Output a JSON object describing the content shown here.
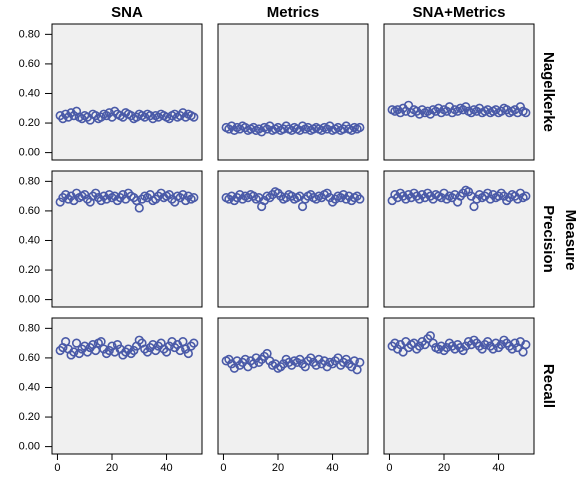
{
  "chart_data": {
    "type": "scatter",
    "columns": [
      "SNA",
      "Metrics",
      "SNA+Metrics"
    ],
    "rows": [
      "Nagelkerke",
      "Precision",
      "Recall"
    ],
    "row_axis_label": "Measure",
    "color": "#4a5aa8",
    "panel_background": "#f0f0f0",
    "xlim": [
      -2,
      53
    ],
    "ylim": [
      -0.05,
      0.87
    ],
    "xticks": [
      0,
      20,
      40
    ],
    "yticks": [
      {
        "value": 0,
        "label": "0.00"
      },
      {
        "value": 0.2,
        "label": "0.20"
      },
      {
        "value": 0.4,
        "label": "0.40"
      },
      {
        "value": 0.6,
        "label": "0.60"
      },
      {
        "value": 0.8,
        "label": "0.80"
      }
    ],
    "x": [
      1,
      2,
      3,
      4,
      5,
      6,
      7,
      8,
      9,
      10,
      11,
      12,
      13,
      14,
      15,
      16,
      17,
      18,
      19,
      20,
      21,
      22,
      23,
      24,
      25,
      26,
      27,
      28,
      29,
      30,
      31,
      32,
      33,
      34,
      35,
      36,
      37,
      38,
      39,
      40,
      41,
      42,
      43,
      44,
      45,
      46,
      47,
      48,
      49,
      50
    ],
    "panels": [
      [
        [
          0.25,
          0.23,
          0.26,
          0.24,
          0.27,
          0.25,
          0.28,
          0.24,
          0.23,
          0.25,
          0.24,
          0.22,
          0.26,
          0.25,
          0.23,
          0.24,
          0.26,
          0.25,
          0.27,
          0.24,
          0.28,
          0.26,
          0.25,
          0.24,
          0.27,
          0.26,
          0.25,
          0.23,
          0.24,
          0.26,
          0.25,
          0.24,
          0.26,
          0.25,
          0.23,
          0.25,
          0.24,
          0.26,
          0.25,
          0.24,
          0.23,
          0.25,
          0.26,
          0.24,
          0.25,
          0.27,
          0.24,
          0.26,
          0.25,
          0.24
        ],
        [
          0.17,
          0.16,
          0.18,
          0.15,
          0.17,
          0.16,
          0.18,
          0.17,
          0.15,
          0.16,
          0.17,
          0.15,
          0.16,
          0.14,
          0.17,
          0.16,
          0.18,
          0.15,
          0.16,
          0.17,
          0.15,
          0.16,
          0.18,
          0.16,
          0.15,
          0.17,
          0.16,
          0.15,
          0.18,
          0.16,
          0.17,
          0.15,
          0.16,
          0.17,
          0.16,
          0.15,
          0.17,
          0.16,
          0.18,
          0.15,
          0.16,
          0.17,
          0.15,
          0.16,
          0.18,
          0.16,
          0.15,
          0.17,
          0.16,
          0.17
        ],
        [
          0.29,
          0.28,
          0.29,
          0.27,
          0.3,
          0.28,
          0.32,
          0.27,
          0.29,
          0.28,
          0.26,
          0.29,
          0.27,
          0.28,
          0.26,
          0.29,
          0.28,
          0.3,
          0.27,
          0.29,
          0.28,
          0.31,
          0.27,
          0.29,
          0.28,
          0.3,
          0.29,
          0.31,
          0.28,
          0.27,
          0.29,
          0.28,
          0.3,
          0.27,
          0.28,
          0.29,
          0.27,
          0.28,
          0.29,
          0.27,
          0.28,
          0.3,
          0.29,
          0.27,
          0.28,
          0.29,
          0.27,
          0.31,
          0.28,
          0.27
        ]
      ],
      [
        [
          0.66,
          0.69,
          0.71,
          0.68,
          0.7,
          0.67,
          0.72,
          0.69,
          0.7,
          0.71,
          0.68,
          0.66,
          0.7,
          0.72,
          0.69,
          0.67,
          0.7,
          0.68,
          0.71,
          0.69,
          0.7,
          0.67,
          0.69,
          0.71,
          0.68,
          0.72,
          0.7,
          0.69,
          0.67,
          0.62,
          0.68,
          0.7,
          0.69,
          0.71,
          0.67,
          0.68,
          0.7,
          0.72,
          0.69,
          0.7,
          0.71,
          0.68,
          0.66,
          0.7,
          0.69,
          0.71,
          0.67,
          0.7,
          0.68,
          0.69
        ],
        [
          0.69,
          0.68,
          0.7,
          0.67,
          0.69,
          0.71,
          0.68,
          0.7,
          0.69,
          0.71,
          0.7,
          0.68,
          0.69,
          0.63,
          0.67,
          0.7,
          0.69,
          0.71,
          0.73,
          0.72,
          0.7,
          0.68,
          0.69,
          0.71,
          0.7,
          0.68,
          0.69,
          0.7,
          0.63,
          0.68,
          0.7,
          0.71,
          0.69,
          0.68,
          0.7,
          0.69,
          0.71,
          0.72,
          0.69,
          0.66,
          0.68,
          0.7,
          0.69,
          0.71,
          0.68,
          0.7,
          0.67,
          0.69,
          0.7,
          0.68
        ],
        [
          0.67,
          0.71,
          0.69,
          0.72,
          0.7,
          0.68,
          0.71,
          0.69,
          0.72,
          0.7,
          0.68,
          0.71,
          0.69,
          0.72,
          0.7,
          0.68,
          0.71,
          0.7,
          0.69,
          0.72,
          0.68,
          0.7,
          0.69,
          0.71,
          0.66,
          0.7,
          0.72,
          0.74,
          0.73,
          0.7,
          0.63,
          0.68,
          0.71,
          0.69,
          0.7,
          0.72,
          0.68,
          0.71,
          0.69,
          0.7,
          0.72,
          0.7,
          0.67,
          0.69,
          0.71,
          0.7,
          0.68,
          0.72,
          0.69,
          0.7
        ]
      ],
      [
        [
          0.65,
          0.67,
          0.71,
          0.66,
          0.62,
          0.64,
          0.7,
          0.63,
          0.66,
          0.68,
          0.64,
          0.67,
          0.69,
          0.65,
          0.7,
          0.71,
          0.66,
          0.63,
          0.65,
          0.68,
          0.64,
          0.69,
          0.66,
          0.62,
          0.64,
          0.66,
          0.63,
          0.65,
          0.68,
          0.72,
          0.7,
          0.66,
          0.64,
          0.67,
          0.69,
          0.65,
          0.68,
          0.7,
          0.66,
          0.64,
          0.68,
          0.71,
          0.67,
          0.69,
          0.65,
          0.71,
          0.66,
          0.63,
          0.68,
          0.7
        ],
        [
          0.58,
          0.59,
          0.56,
          0.53,
          0.58,
          0.55,
          0.57,
          0.59,
          0.54,
          0.58,
          0.56,
          0.6,
          0.57,
          0.59,
          0.61,
          0.63,
          0.58,
          0.55,
          0.56,
          0.53,
          0.54,
          0.56,
          0.59,
          0.57,
          0.55,
          0.58,
          0.57,
          0.59,
          0.56,
          0.54,
          0.58,
          0.6,
          0.57,
          0.55,
          0.59,
          0.56,
          0.58,
          0.54,
          0.57,
          0.56,
          0.58,
          0.6,
          0.55,
          0.57,
          0.59,
          0.56,
          0.54,
          0.58,
          0.52,
          0.57
        ],
        [
          0.68,
          0.7,
          0.66,
          0.69,
          0.64,
          0.71,
          0.67,
          0.69,
          0.7,
          0.66,
          0.68,
          0.71,
          0.69,
          0.73,
          0.75,
          0.7,
          0.67,
          0.66,
          0.68,
          0.65,
          0.67,
          0.7,
          0.68,
          0.66,
          0.69,
          0.67,
          0.65,
          0.68,
          0.71,
          0.69,
          0.72,
          0.7,
          0.68,
          0.66,
          0.69,
          0.71,
          0.68,
          0.66,
          0.7,
          0.67,
          0.69,
          0.72,
          0.7,
          0.68,
          0.66,
          0.7,
          0.67,
          0.71,
          0.64,
          0.69
        ]
      ]
    ]
  }
}
